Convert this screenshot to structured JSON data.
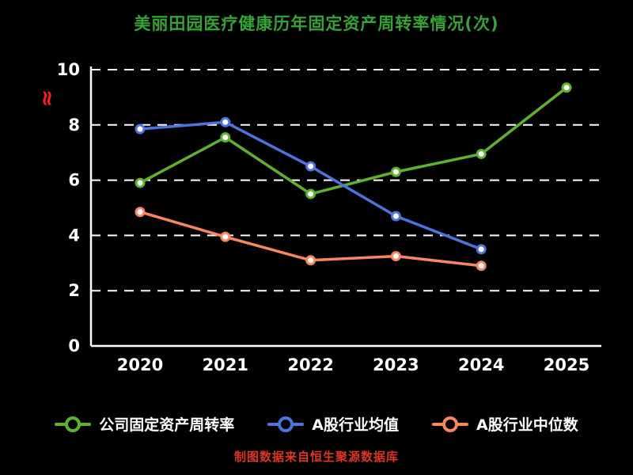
{
  "page": {
    "background_color": "#000000",
    "text_color": "#ffffff",
    "axis_break_symbol": "≈",
    "axis_break_color": "#ff1c1c",
    "caption": "制图数据来自恒生聚源数据库",
    "caption_color": "#e03528"
  },
  "chart_data": {
    "type": "line",
    "title": "美丽田园医疗健康历年固定资产周转率情况(次)",
    "title_color": "#37a337",
    "x": [
      "2020",
      "2021",
      "2022",
      "2023",
      "2024",
      "2025"
    ],
    "yticks": [
      0,
      2,
      4,
      6,
      8,
      10
    ],
    "ylim": [
      0,
      10
    ],
    "grid": "dashed-horizontal",
    "legend_position": "bottom",
    "axis_color": "#ffffff",
    "gridline_color": "#ffffff",
    "series": [
      {
        "name": "公司固定资产周转率",
        "color": "#5cb32e",
        "values": [
          5.9,
          7.55,
          5.5,
          6.3,
          6.95,
          9.35
        ]
      },
      {
        "name": "A股行业均值",
        "color": "#4d73de",
        "values": [
          7.85,
          8.1,
          6.5,
          4.7,
          3.5,
          null
        ]
      },
      {
        "name": "A股行业中位数",
        "color": "#f8875f",
        "values": [
          4.85,
          3.95,
          3.1,
          3.25,
          2.9,
          null
        ]
      }
    ]
  }
}
